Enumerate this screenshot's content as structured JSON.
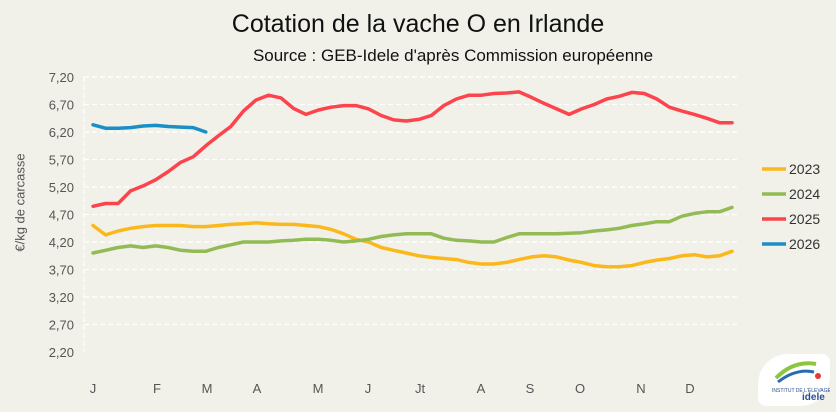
{
  "chart_data": {
    "type": "line",
    "title": "Cotation de la vache O en Irlande",
    "subtitle": "Source : GEB-Idele d'après Commission européenne",
    "ylabel": "€/kg de carcasse",
    "xlabel": "",
    "ylim": [
      2.2,
      7.2
    ],
    "yticks": [
      "7,20",
      "6,70",
      "6,20",
      "5,70",
      "5,20",
      "4,70",
      "4,20",
      "3,70",
      "3,20",
      "2,70",
      "2,20"
    ],
    "xticks": [
      "J",
      "F",
      "M",
      "A",
      "M",
      "J",
      "Jt",
      "A",
      "S",
      "O",
      "N",
      "D"
    ],
    "grid": true,
    "legend": "right",
    "series": [
      {
        "name": "2023",
        "color": "#fbb81c",
        "values": [
          4.5,
          4.33,
          4.4,
          4.45,
          4.48,
          4.5,
          4.5,
          4.5,
          4.48,
          4.48,
          4.5,
          4.52,
          4.53,
          4.55,
          4.53,
          4.52,
          4.52,
          4.5,
          4.48,
          4.43,
          4.35,
          4.25,
          4.2,
          4.1,
          4.05,
          4.0,
          3.95,
          3.92,
          3.9,
          3.88,
          3.83,
          3.8,
          3.8,
          3.83,
          3.88,
          3.93,
          3.95,
          3.93,
          3.87,
          3.83,
          3.77,
          3.75,
          3.75,
          3.77,
          3.83,
          3.87,
          3.9,
          3.95,
          3.97,
          3.93,
          3.95,
          4.03
        ]
      },
      {
        "name": "2024",
        "color": "#93bb55",
        "values": [
          4.0,
          4.05,
          4.1,
          4.13,
          4.1,
          4.13,
          4.1,
          4.05,
          4.03,
          4.03,
          4.1,
          4.15,
          4.2,
          4.2,
          4.2,
          4.22,
          4.23,
          4.25,
          4.25,
          4.23,
          4.2,
          4.22,
          4.25,
          4.3,
          4.33,
          4.35,
          4.35,
          4.35,
          4.27,
          4.23,
          4.22,
          4.2,
          4.2,
          4.28,
          4.35,
          4.35,
          4.35,
          4.35,
          4.36,
          4.37,
          4.4,
          4.42,
          4.45,
          4.5,
          4.53,
          4.57,
          4.57,
          4.67,
          4.72,
          4.75,
          4.75,
          4.83
        ]
      },
      {
        "name": "2025",
        "color": "#fb444c",
        "values": [
          4.85,
          4.9,
          4.9,
          5.13,
          5.22,
          5.33,
          5.48,
          5.65,
          5.75,
          5.95,
          6.13,
          6.3,
          6.58,
          6.78,
          6.87,
          6.82,
          6.63,
          6.52,
          6.6,
          6.65,
          6.68,
          6.68,
          6.62,
          6.5,
          6.42,
          6.4,
          6.43,
          6.5,
          6.68,
          6.8,
          6.87,
          6.87,
          6.9,
          6.91,
          6.93,
          6.83,
          6.72,
          6.62,
          6.52,
          6.62,
          6.7,
          6.8,
          6.85,
          6.92,
          6.9,
          6.8,
          6.65,
          6.58,
          6.52,
          6.45,
          6.37,
          6.37
        ]
      },
      {
        "name": "2026",
        "color": "#1a8fc6",
        "values": [
          6.33,
          6.27,
          6.27,
          6.28,
          6.31,
          6.32,
          6.3,
          6.29,
          6.28,
          6.2
        ]
      }
    ]
  },
  "logo": {
    "text": "INSTITUT DE L'ÉLEVAGE idele"
  }
}
